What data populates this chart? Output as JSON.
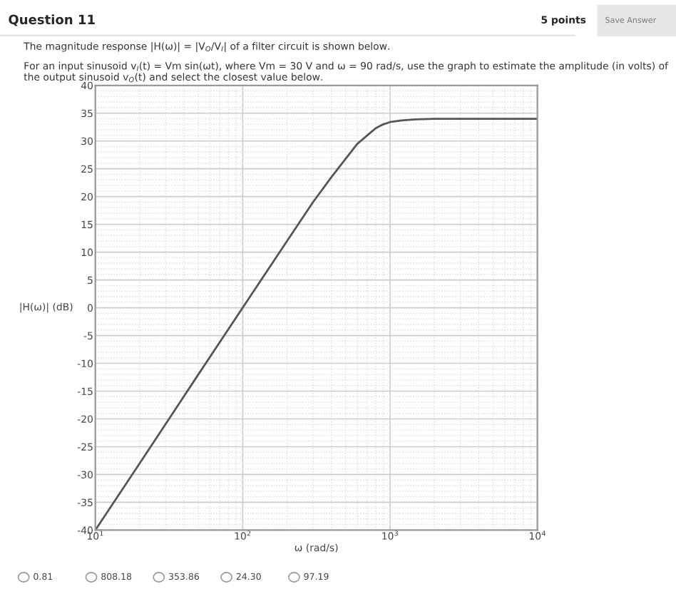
{
  "chart_data": {
    "type": "line",
    "title": "Question 11",
    "xlabel": "ω (rad/s)",
    "ylabel": "|H(ω)| (dB)",
    "annotations": [
      "5 points",
      "Save Answer",
      "The magnitude response |H(ω)| = |V$_{O}$/V$_{I}$| of a filter circuit is shown below.",
      "For an input sinusoid v$_{I}$(t) = Vm sin(ωt), where Vm = 30 V and ω = 90 rad/s, use the graph to estimate the amplitude (in volts) of the output sinusoid v$_{O}$(t) and select the closest value below.",
      "0.81",
      "808.18",
      "353.86",
      "24.30",
      "97.19"
    ],
    "series": [
      {
        "color": "#555555",
        "x": [
          10,
          20,
          50,
          100,
          200,
          300,
          400,
          500,
          600,
          700,
          800,
          900,
          1000,
          1200,
          1500,
          2000,
          5000,
          10000
        ],
        "values": [
          -40,
          -28,
          -12,
          0,
          12,
          19,
          23.5,
          26.8,
          29.5,
          31,
          32.3,
          33,
          33.4,
          33.7,
          33.9,
          34,
          34,
          34
        ]
      }
    ],
    "log": "x",
    "xlim": [
      10,
      10000
    ],
    "ylim": [
      -40,
      40
    ],
    "xticks": [
      {
        "value": 10,
        "label": "10$^{1}$"
      },
      {
        "value": 100,
        "label": "10$^{2}$"
      },
      {
        "value": 1000,
        "label": "10$^{3}$"
      },
      {
        "value": 10000,
        "label": "10$^{4}$"
      }
    ],
    "yticks": [
      -40,
      -35,
      -30,
      -25,
      -20,
      -15,
      -10,
      -5,
      0,
      5,
      10,
      15,
      20,
      25,
      30,
      35,
      40
    ],
    "grid": true,
    "marker": "none",
    "line_style": "solid"
  }
}
